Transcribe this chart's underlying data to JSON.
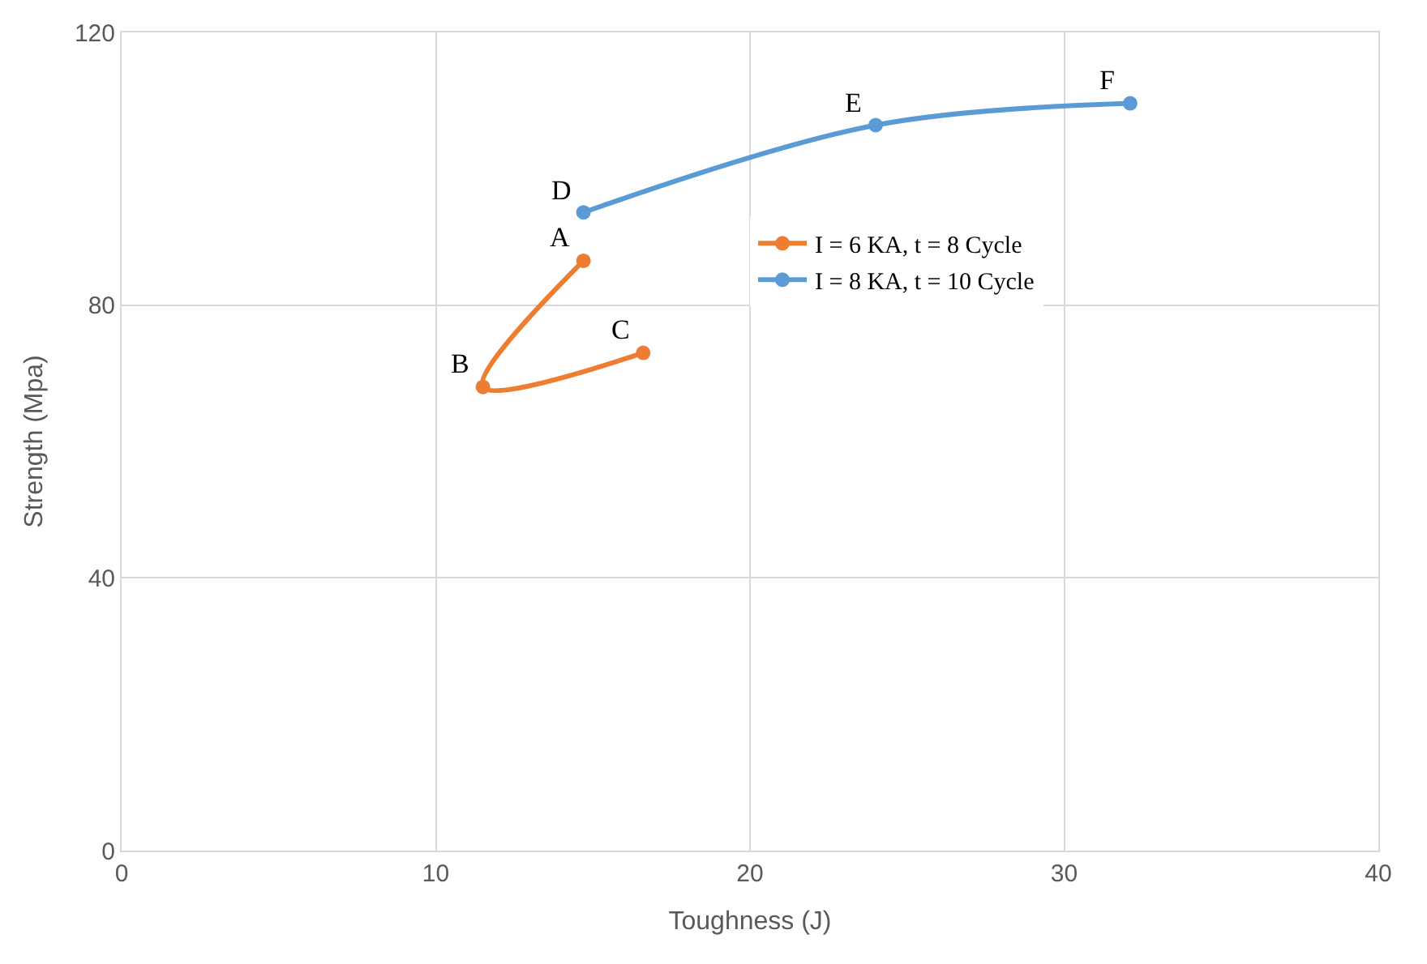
{
  "chart_data": {
    "type": "line",
    "xlabel": "Toughness (J)",
    "ylabel": "Strength (Mpa)",
    "series": [
      {
        "name": "I = 6 KA, t = 8 Cycle",
        "color": "#ed7d31",
        "x": [
          14.7,
          11.5,
          16.6
        ],
        "values": [
          86.5,
          68,
          73
        ]
      },
      {
        "name": "I = 8 KA, t = 10 Cycle",
        "color": "#5b9bd5",
        "x": [
          14.7,
          24.0,
          32.1
        ],
        "values": [
          93.6,
          106.4,
          109.6
        ]
      }
    ],
    "annotations": [
      {
        "text": "A",
        "x": 14.7,
        "y": 86.5
      },
      {
        "text": "B",
        "x": 11.5,
        "y": 68
      },
      {
        "text": "C",
        "x": 16.6,
        "y": 73
      },
      {
        "text": "D",
        "x": 14.7,
        "y": 93.6
      },
      {
        "text": "E",
        "x": 24.0,
        "y": 106.4
      },
      {
        "text": "F",
        "x": 32.1,
        "y": 109.6
      }
    ],
    "xlim": [
      0,
      40
    ],
    "xticks": [
      0,
      10,
      20,
      30,
      40
    ],
    "ylim": [
      0,
      120
    ],
    "yticks": [
      0,
      40,
      80,
      120
    ],
    "grid": true,
    "legend": "right",
    "marker": "circle",
    "line_style": "solid"
  }
}
